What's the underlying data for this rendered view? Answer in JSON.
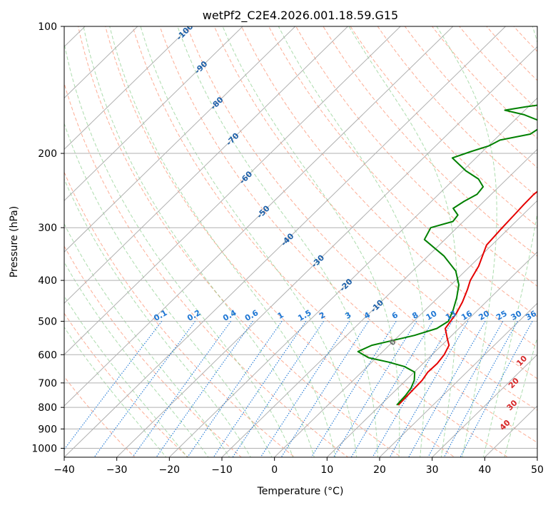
{
  "chart_data": {
    "type": "line",
    "title": "wetPf2_C2E4.2026.001.18.59.G15",
    "xlabel": "Temperature (°C)",
    "ylabel": "Pressure (hPa)",
    "xlim": [
      -40,
      50
    ],
    "ylim": [
      1050,
      100
    ],
    "y_scale": "log",
    "grid": true,
    "x_ticks": [
      -40,
      -30,
      -20,
      -10,
      0,
      10,
      20,
      30,
      40,
      50
    ],
    "x_tick_labels": [
      "−40",
      "−30",
      "−20",
      "−10",
      "0",
      "10",
      "20",
      "30",
      "40",
      "50"
    ],
    "y_ticks": [
      100,
      200,
      300,
      400,
      500,
      600,
      700,
      800,
      900,
      1000
    ],
    "y_tick_labels": [
      "100",
      "200",
      "300",
      "400",
      "500",
      "600",
      "700",
      "800",
      "900",
      "1000"
    ],
    "colors": {
      "temperature": "#e50000",
      "dewpoint": "#008000",
      "isotherm": "#b0b0b0",
      "dry_adiabat": "#fc9272",
      "moist_adiabat": "#74c476",
      "mixing_ratio": "#1f77d4",
      "grid": "#b0b0b0",
      "isotherm_label": "#1c5fa8",
      "wetbulb_label": "#d62728",
      "zero_label": "#707070"
    },
    "series": [
      {
        "key": "temperature",
        "x": [
          13.4,
          13.3,
          13.2,
          13.1,
          12.6,
          12.7,
          12.3,
          11.4,
          9.8,
          7.4,
          6.6,
          5.5,
          4.0,
          2.8,
          1.6,
          -1.0,
          -1.4,
          -1.6,
          -1.8,
          -1.9,
          -1.3,
          0.2,
          2.6,
          6.1,
          9.9,
          12.5,
          13.5,
          14.2,
          14.5,
          14.2,
          14.0
        ],
        "y": [
          790,
          750,
          720,
          690,
          660,
          630,
          600,
          570,
          550,
          520,
          480,
          450,
          420,
          400,
          370,
          330,
          300,
          280,
          265,
          250,
          235,
          220,
          205,
          185,
          170,
          160,
          150,
          140,
          125,
          110,
          100
        ]
      },
      {
        "key": "dewpoint",
        "x": [
          13.1,
          12.9,
          12.5,
          11.6,
          10.1,
          7.0,
          3.2,
          -1.5,
          -4.7,
          -3.3,
          -0.2,
          2.9,
          5.8,
          6.6,
          5.3,
          3.6,
          1.5,
          -1.8,
          -7.0,
          -13.9,
          -15.0,
          -12.0,
          -12.3,
          -14.5,
          -13.8,
          -12.7,
          -13.0,
          -15.4,
          -19.4,
          -24.5,
          -22.2,
          -19.9,
          -18.9,
          -14.3,
          -13.8,
          -14.7,
          -19.2,
          -23.8,
          -20.4,
          -14.5,
          -9.8,
          -8.9,
          -7.5,
          -5.4,
          -2.7,
          -1.0
        ],
        "y": [
          790,
          750,
          720,
          690,
          660,
          640,
          625,
          610,
          590,
          570,
          555,
          540,
          520,
          500,
          470,
          440,
          410,
          380,
          350,
          320,
          300,
          290,
          280,
          270,
          260,
          250,
          240,
          230,
          220,
          205,
          198,
          192,
          186,
          180,
          175,
          168,
          162,
          158,
          155,
          151,
          147,
          142,
          135,
          125,
          110,
          100
        ]
      }
    ],
    "isotherm_labels": [
      "-100",
      "-90",
      "-80",
      "-70",
      "-60",
      "-50",
      "-40",
      "-30",
      "-20",
      "-10",
      "0"
    ],
    "mixing_ratio_labels": [
      "0.1",
      "0.2",
      "0.4",
      "0.6",
      "1",
      "1.5",
      "2",
      "3",
      "4",
      "6",
      "8",
      "10",
      "13",
      "16",
      "20",
      "25",
      "30",
      "36"
    ],
    "wetbulb_labels": [
      "10",
      "20",
      "30",
      "40"
    ]
  }
}
